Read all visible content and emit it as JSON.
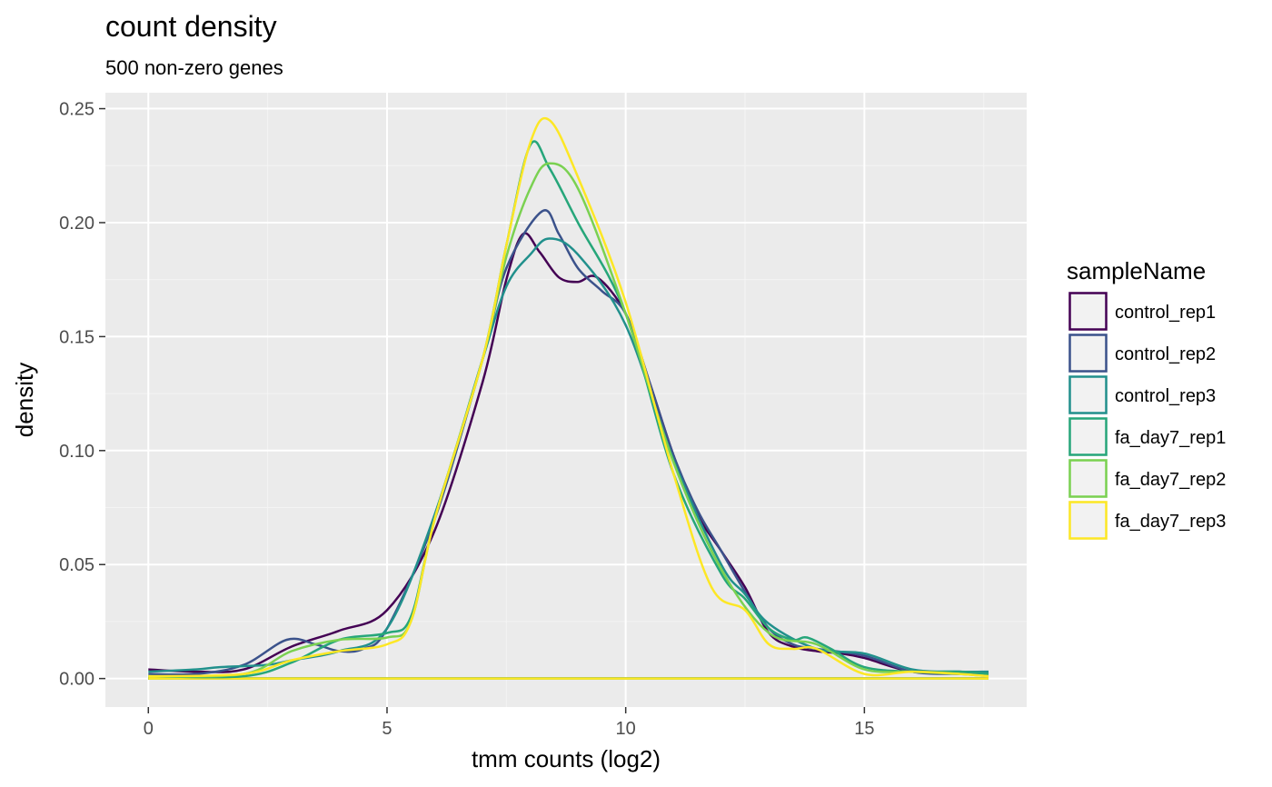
{
  "chart_data": {
    "type": "line",
    "title": "count density",
    "subtitle": "500 non-zero genes",
    "xlabel": "tmm counts (log2)",
    "ylabel": "density",
    "xlim": [
      -0.9,
      18.4
    ],
    "ylim": [
      -0.0125,
      0.257
    ],
    "x_ticks": [
      0,
      5,
      10,
      15
    ],
    "x_tick_labels": [
      "0",
      "5",
      "10",
      "15"
    ],
    "y_ticks": [
      0,
      0.05,
      0.1,
      0.15,
      0.2,
      0.25
    ],
    "y_tick_labels": [
      "0.00",
      "0.05",
      "0.10",
      "0.15",
      "0.20",
      "0.25"
    ],
    "grid": true,
    "legend_title": "sampleName",
    "legend_position": "right",
    "x_range": [
      0,
      17.6
    ],
    "series": [
      {
        "name": "control_rep1",
        "color": "#440154",
        "points": [
          [
            0,
            0.004
          ],
          [
            1,
            0.003
          ],
          [
            2,
            0.004
          ],
          [
            3,
            0.014
          ],
          [
            4,
            0.021
          ],
          [
            5,
            0.03
          ],
          [
            6,
            0.065
          ],
          [
            7,
            0.13
          ],
          [
            7.5,
            0.175
          ],
          [
            7.85,
            0.195
          ],
          [
            8.2,
            0.187
          ],
          [
            8.6,
            0.176
          ],
          [
            9,
            0.174
          ],
          [
            9.4,
            0.176
          ],
          [
            10,
            0.16
          ],
          [
            10.5,
            0.13
          ],
          [
            11,
            0.098
          ],
          [
            11.5,
            0.072
          ],
          [
            12,
            0.056
          ],
          [
            12.5,
            0.04
          ],
          [
            13,
            0.02
          ],
          [
            13.5,
            0.014
          ],
          [
            14,
            0.012
          ],
          [
            14.5,
            0.011
          ],
          [
            15,
            0.009
          ],
          [
            16,
            0.003
          ],
          [
            17,
            0.003
          ],
          [
            17.6,
            0.002
          ]
        ]
      },
      {
        "name": "control_rep2",
        "color": "#3b528b",
        "points": [
          [
            0,
            0.002
          ],
          [
            1,
            0.002
          ],
          [
            2,
            0.006
          ],
          [
            2.9,
            0.017
          ],
          [
            3.5,
            0.015
          ],
          [
            4,
            0.012
          ],
          [
            4.5,
            0.013
          ],
          [
            5,
            0.022
          ],
          [
            6,
            0.07
          ],
          [
            7,
            0.14
          ],
          [
            7.5,
            0.18
          ],
          [
            8.25,
            0.205
          ],
          [
            8.6,
            0.195
          ],
          [
            9,
            0.18
          ],
          [
            9.5,
            0.17
          ],
          [
            10,
            0.16
          ],
          [
            10.5,
            0.13
          ],
          [
            11,
            0.098
          ],
          [
            11.5,
            0.074
          ],
          [
            12,
            0.056
          ],
          [
            12.5,
            0.038
          ],
          [
            13,
            0.022
          ],
          [
            13.5,
            0.015
          ],
          [
            14,
            0.013
          ],
          [
            15,
            0.01
          ],
          [
            16,
            0.003
          ],
          [
            17,
            0.002
          ],
          [
            17.6,
            0.002
          ]
        ]
      },
      {
        "name": "control_rep3",
        "color": "#21908c",
        "points": [
          [
            0,
            0.003
          ],
          [
            1,
            0.004
          ],
          [
            1.5,
            0.005
          ],
          [
            2.5,
            0.006
          ],
          [
            3,
            0.008
          ],
          [
            4,
            0.012
          ],
          [
            5,
            0.022
          ],
          [
            6,
            0.072
          ],
          [
            7,
            0.14
          ],
          [
            7.5,
            0.172
          ],
          [
            8,
            0.186
          ],
          [
            8.4,
            0.193
          ],
          [
            9,
            0.186
          ],
          [
            10,
            0.155
          ],
          [
            11,
            0.096
          ],
          [
            12,
            0.05
          ],
          [
            12.5,
            0.037
          ],
          [
            13,
            0.024
          ],
          [
            14,
            0.013
          ],
          [
            15,
            0.011
          ],
          [
            16,
            0.004
          ],
          [
            17,
            0.003
          ],
          [
            17.6,
            0.003
          ]
        ]
      },
      {
        "name": "fa_day7_rep1",
        "color": "#26a67a",
        "points": [
          [
            0,
            0.001
          ],
          [
            2,
            0.001
          ],
          [
            3,
            0.007
          ],
          [
            4,
            0.017
          ],
          [
            5,
            0.02
          ],
          [
            5.5,
            0.027
          ],
          [
            6,
            0.07
          ],
          [
            7,
            0.14
          ],
          [
            7.5,
            0.19
          ],
          [
            8,
            0.234
          ],
          [
            8.4,
            0.224
          ],
          [
            9,
            0.2
          ],
          [
            10,
            0.16
          ],
          [
            11,
            0.09
          ],
          [
            12,
            0.046
          ],
          [
            12.5,
            0.035
          ],
          [
            13,
            0.022
          ],
          [
            13.5,
            0.017
          ],
          [
            13.8,
            0.018
          ],
          [
            14.3,
            0.013
          ],
          [
            15,
            0.005
          ],
          [
            16,
            0.003
          ],
          [
            17,
            0.003
          ],
          [
            17.6,
            0.002
          ]
        ]
      },
      {
        "name": "fa_day7_rep2",
        "color": "#7ad151",
        "points": [
          [
            0,
            0.001
          ],
          [
            2,
            0.002
          ],
          [
            3,
            0.012
          ],
          [
            4,
            0.017
          ],
          [
            5,
            0.018
          ],
          [
            5.5,
            0.025
          ],
          [
            6,
            0.07
          ],
          [
            7,
            0.14
          ],
          [
            7.5,
            0.185
          ],
          [
            8,
            0.215
          ],
          [
            8.4,
            0.226
          ],
          [
            9,
            0.215
          ],
          [
            10,
            0.16
          ],
          [
            11,
            0.095
          ],
          [
            12,
            0.048
          ],
          [
            13,
            0.02
          ],
          [
            14,
            0.015
          ],
          [
            15,
            0.004
          ],
          [
            16,
            0.003
          ],
          [
            17,
            0.002
          ],
          [
            17.6,
            0.001
          ]
        ]
      },
      {
        "name": "fa_day7_rep3",
        "color": "#fde725",
        "points": [
          [
            0,
            0.001
          ],
          [
            2,
            0.002
          ],
          [
            3,
            0.008
          ],
          [
            4,
            0.012
          ],
          [
            5,
            0.015
          ],
          [
            5.5,
            0.025
          ],
          [
            6,
            0.07
          ],
          [
            7,
            0.14
          ],
          [
            7.5,
            0.19
          ],
          [
            8,
            0.235
          ],
          [
            8.4,
            0.245
          ],
          [
            9,
            0.22
          ],
          [
            10,
            0.165
          ],
          [
            11,
            0.09
          ],
          [
            11.8,
            0.04
          ],
          [
            12.5,
            0.03
          ],
          [
            13,
            0.015
          ],
          [
            13.5,
            0.013
          ],
          [
            14,
            0.013
          ],
          [
            15,
            0.002
          ],
          [
            16,
            0.003
          ],
          [
            17,
            0.002
          ],
          [
            17.6,
            0.001
          ]
        ]
      }
    ]
  }
}
